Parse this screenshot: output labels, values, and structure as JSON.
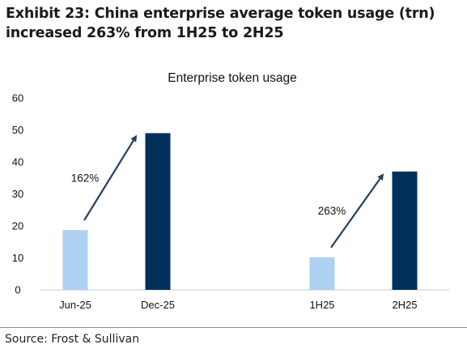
{
  "header": {
    "title_line1": "Exhibit 23: China enterprise average token usage (trn)",
    "title_line2": "increased 263% from 1H25 to 2H25"
  },
  "source": "Source: Frost & Sullivan",
  "colors": {
    "light_bar": "#aed1f2",
    "dark_bar": "#00305a",
    "arrow": "#243f60"
  },
  "chart_data": {
    "type": "bar",
    "title": "Enterprise token usage",
    "xlabel": "",
    "ylabel": "",
    "ylim": [
      0,
      60
    ],
    "yticks": [
      0,
      10,
      20,
      30,
      40,
      50,
      60
    ],
    "grid": false,
    "categories": [
      "Jun-25",
      "Dec-25",
      "1H25",
      "2H25"
    ],
    "values": [
      18.7,
      49,
      10.2,
      37
    ],
    "bar_colors": [
      "light",
      "dark",
      "light",
      "dark"
    ],
    "annotations": [
      {
        "text": "162%",
        "from": "Jun-25",
        "to": "Dec-25"
      },
      {
        "text": "263%",
        "from": "1H25",
        "to": "2H25"
      }
    ]
  }
}
